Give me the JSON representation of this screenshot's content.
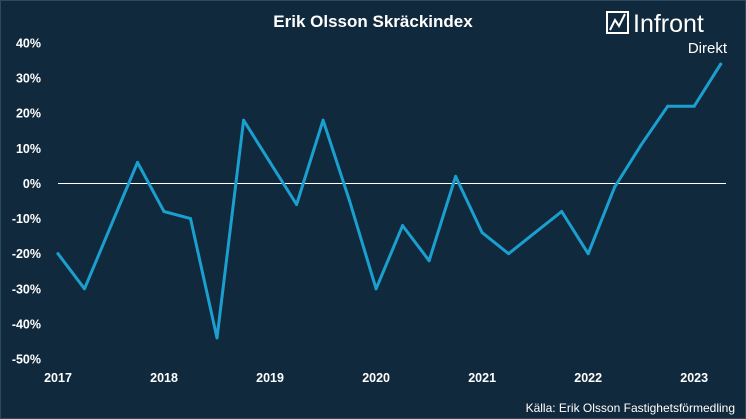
{
  "chart_data": {
    "type": "line",
    "title": "Erik Olsson Skräckindex",
    "xlabel": "",
    "ylabel": "",
    "x_tick_labels": [
      "2017",
      "2018",
      "2019",
      "2020",
      "2021",
      "2022",
      "2023"
    ],
    "y_tick_labels": [
      "40%",
      "30%",
      "20%",
      "10%",
      "0%",
      "-10%",
      "-20%",
      "-30%",
      "-40%",
      "-50%"
    ],
    "ylim": [
      -50,
      40
    ],
    "xlim": [
      2017.0,
      2023.3
    ],
    "grid": false,
    "zero_line": true,
    "series": [
      {
        "color": "#1b9fcf",
        "x": [
          2017.0,
          2017.25,
          2017.5,
          2017.75,
          2018.0,
          2018.25,
          2018.5,
          2018.75,
          2019.0,
          2019.25,
          2019.5,
          2019.75,
          2020.0,
          2020.25,
          2020.5,
          2020.75,
          2021.0,
          2021.25,
          2021.5,
          2021.75,
          2022.0,
          2022.25,
          2022.5,
          2022.75,
          2023.0,
          2023.25
        ],
        "values": [
          -20,
          -30,
          -12,
          6,
          -8,
          -10,
          -44,
          18,
          6,
          -6,
          18,
          -5,
          -30,
          -12,
          -22,
          2,
          -14,
          -20,
          -14,
          -8,
          -20,
          -1,
          11,
          22,
          22,
          34
        ]
      }
    ]
  },
  "brand": {
    "name": "Infront",
    "sub": "Direkt"
  },
  "source": "Källa:  Erik Olsson Fastighetsförmedling",
  "colors": {
    "background": "#11293d",
    "line": "#1b9fcf",
    "text": "#ffffff"
  }
}
